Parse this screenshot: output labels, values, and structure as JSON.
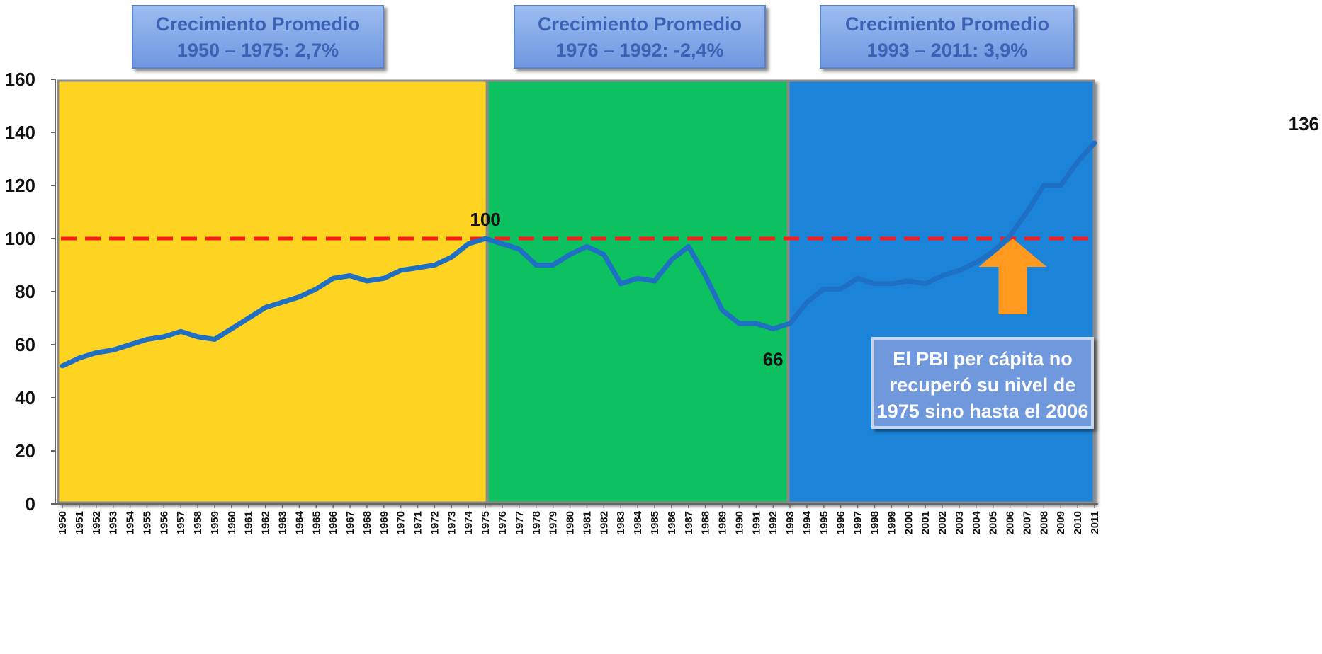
{
  "chart_data": {
    "type": "line",
    "title": "",
    "xlabel": "",
    "ylabel": "",
    "ylim": [
      0,
      160
    ],
    "yticks": [
      0,
      20,
      40,
      60,
      80,
      100,
      120,
      140,
      160
    ],
    "grid": false,
    "categories": [
      "1950",
      "1951",
      "1952",
      "1953",
      "1954",
      "1955",
      "1956",
      "1957",
      "1958",
      "1959",
      "1960",
      "1961",
      "1962",
      "1963",
      "1964",
      "1965",
      "1966",
      "1967",
      "1968",
      "1969",
      "1970",
      "1971",
      "1972",
      "1973",
      "1974",
      "1975",
      "1976",
      "1977",
      "1978",
      "1979",
      "1980",
      "1981",
      "1982",
      "1983",
      "1984",
      "1985",
      "1986",
      "1987",
      "1988",
      "1989",
      "1990",
      "1991",
      "1992",
      "1993",
      "1994",
      "1995",
      "1996",
      "1997",
      "1998",
      "1999",
      "2000",
      "2001",
      "2002",
      "2003",
      "2004",
      "2005",
      "2006",
      "2007",
      "2008",
      "2009",
      "2010",
      "2011"
    ],
    "series": [
      {
        "values": [
          52,
          55,
          57,
          58,
          60,
          62,
          63,
          65,
          63,
          62,
          66,
          70,
          74,
          76,
          78,
          81,
          85,
          86,
          84,
          85,
          88,
          89,
          90,
          93,
          98,
          100,
          98,
          96,
          90,
          90,
          94,
          97,
          94,
          83,
          85,
          84,
          92,
          97,
          86,
          73,
          68,
          68,
          66,
          68,
          76,
          81,
          81,
          85,
          83,
          83,
          84,
          83,
          86,
          88,
          91,
          95,
          101,
          110,
          120,
          120,
          129,
          136
        ],
        "color": "#1f6fc5"
      }
    ],
    "reference_line": {
      "value": 100,
      "color": "#ff1a1a",
      "style": "dashed"
    },
    "periods": [
      {
        "start": "1950",
        "end": "1975",
        "color": "#ffd320",
        "box_line1": "Crecimiento Promedio",
        "box_line2": "1950 – 1975: 2,7%"
      },
      {
        "start": "1975",
        "end": "1993",
        "color": "#10c060",
        "box_line1": "Crecimiento Promedio",
        "box_line2": "1976 – 1992: -2,4%"
      },
      {
        "start": "1993",
        "end": "2011",
        "color": "#1c84d8",
        "box_line1": "Crecimiento Promedio",
        "box_line2": "1993 – 2011: 3,9%"
      }
    ],
    "data_labels": [
      {
        "x": "1975",
        "text": "100"
      },
      {
        "x": "1992",
        "text": "66"
      },
      {
        "x": "2011",
        "text": "136"
      }
    ],
    "annotation": {
      "x": "2006",
      "arrow_color": "#ff9a1e",
      "lines": [
        "El PBI per cápita no",
        "recuperó su nivel de",
        "1975 sino hasta el 2006"
      ]
    }
  }
}
